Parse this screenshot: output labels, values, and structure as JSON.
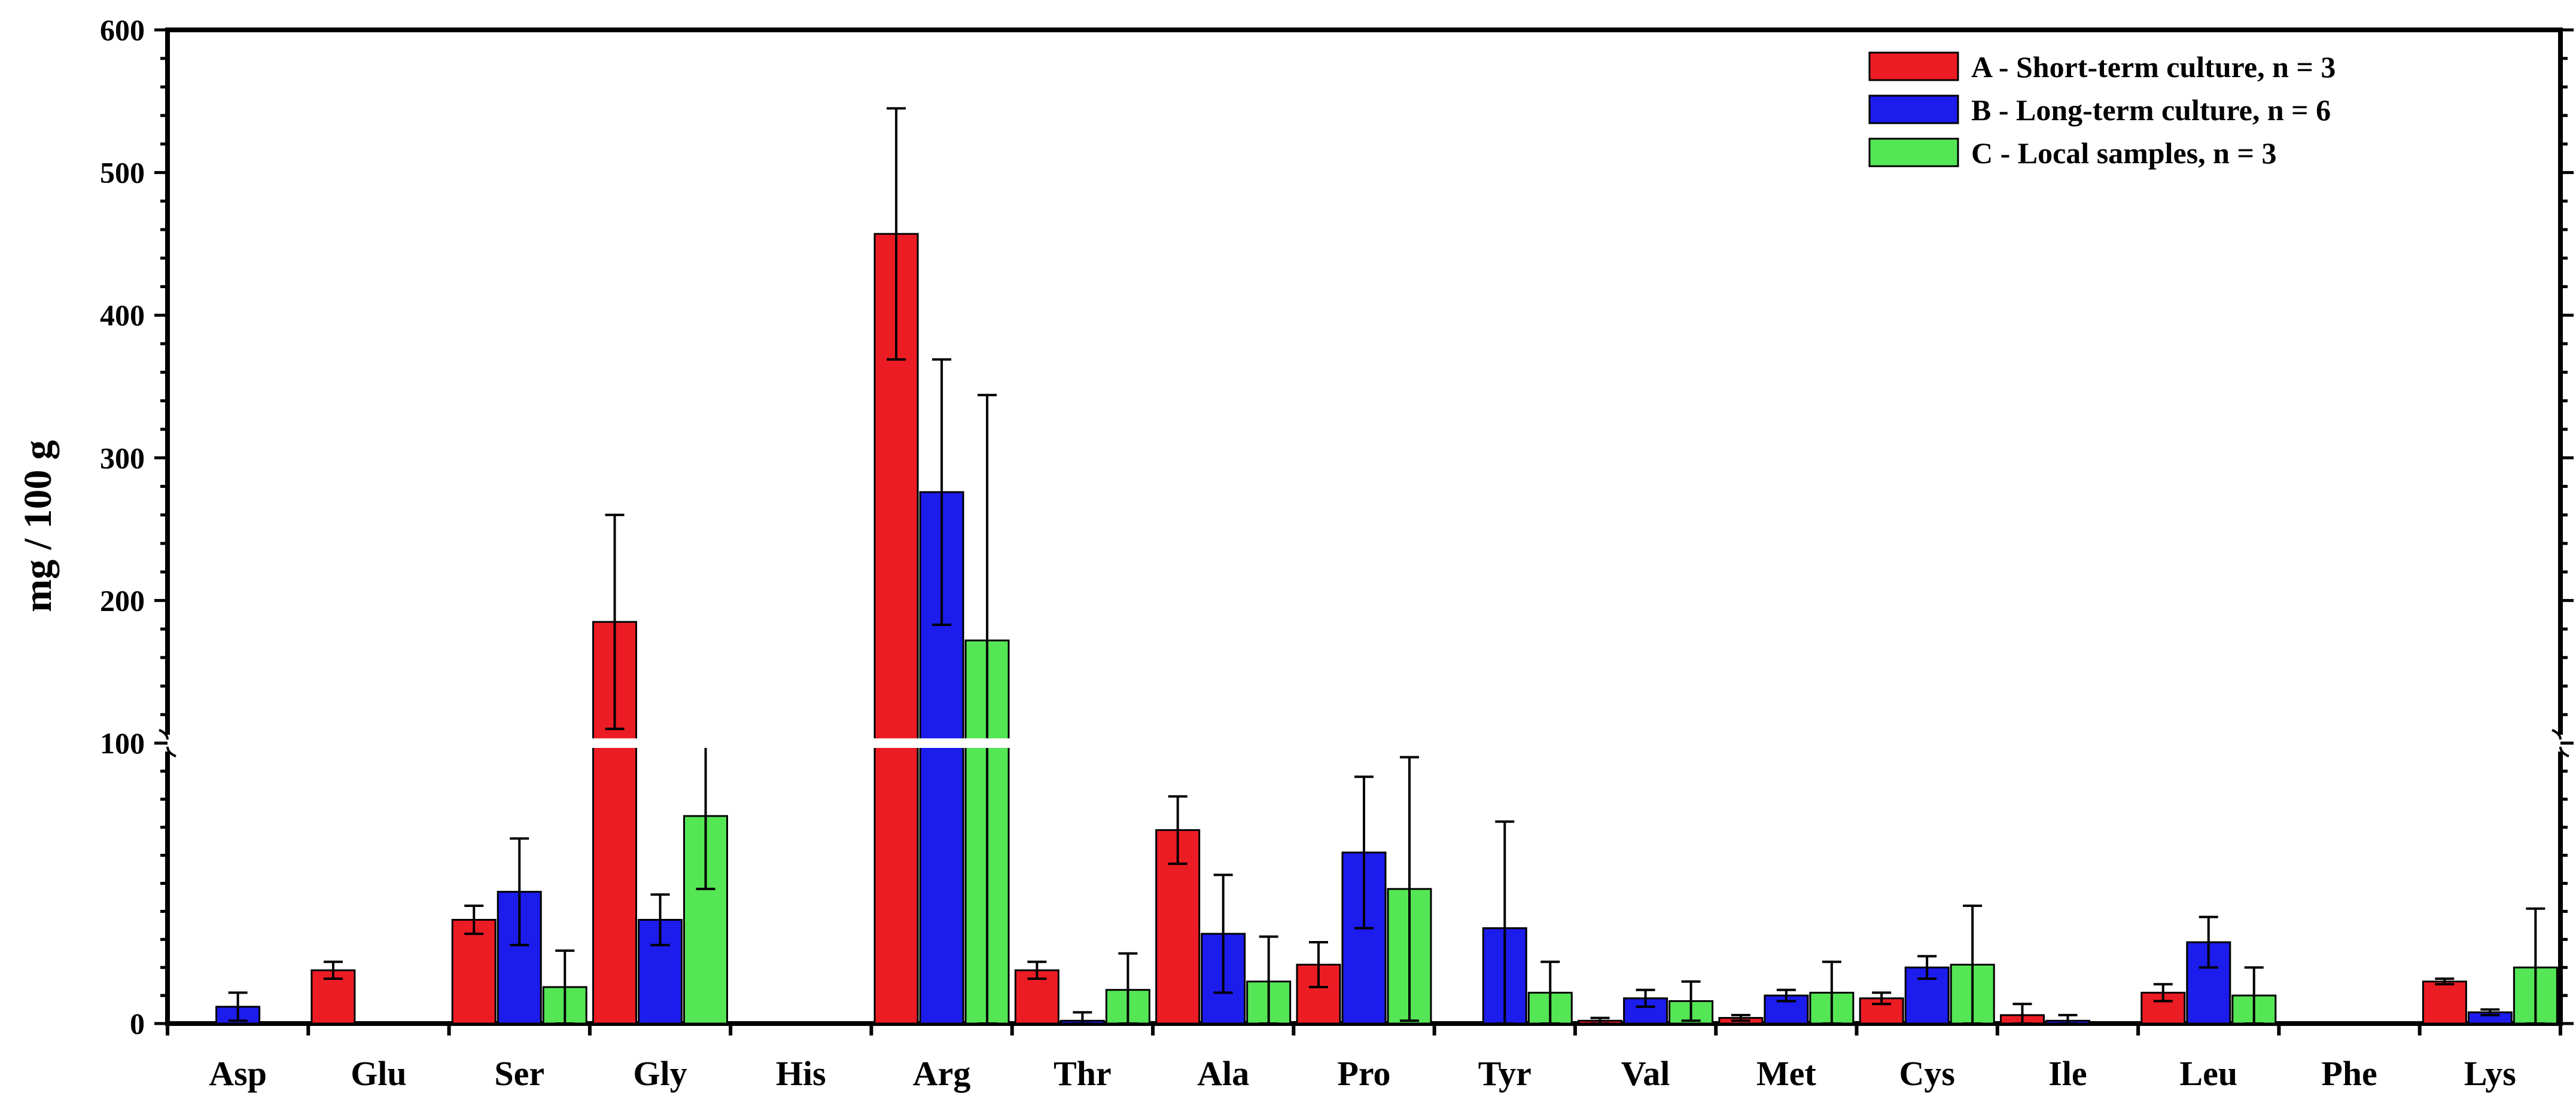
{
  "chart_data": {
    "type": "bar",
    "title": "",
    "xlabel": "",
    "ylabel": "mg / 100 g",
    "y_axis": {
      "broken": true,
      "lower_segment": {
        "range": [
          0,
          100
        ],
        "ticks": [
          0,
          100
        ],
        "minor_step": 10
      },
      "upper_segment": {
        "range": [
          100,
          600
        ],
        "ticks": [
          200,
          300,
          400,
          500,
          600
        ],
        "minor_step": 20
      },
      "tick_labels": [
        "0",
        "100",
        "200",
        "300",
        "400",
        "500",
        "600"
      ]
    },
    "grid": false,
    "legend_position": "top-right",
    "categories": [
      "Asp",
      "Glu",
      "Ser",
      "Gly",
      "His",
      "Arg",
      "Thr",
      "Ala",
      "Pro",
      "Tyr",
      "Val",
      "Met",
      "Cys",
      "Ile",
      "Leu",
      "Phe",
      "Lys"
    ],
    "series": [
      {
        "name": "A - Short-term culture, n = 3",
        "color": "#ec1c24",
        "values": [
          0,
          19,
          37,
          185,
          0,
          457,
          19,
          69,
          21,
          0,
          1,
          2,
          9,
          3,
          11,
          0,
          15
        ],
        "errors": [
          0,
          3,
          5,
          75,
          0,
          88,
          3,
          12,
          8,
          0,
          1,
          1,
          2,
          4,
          3,
          0,
          1
        ]
      },
      {
        "name": "B - Long-term culture, n = 6",
        "color": "#1c1cec",
        "values": [
          6,
          0,
          47,
          37,
          0,
          276,
          1,
          32,
          61,
          34,
          9,
          10,
          20,
          1,
          29,
          0,
          4
        ],
        "errors": [
          5,
          0,
          19,
          9,
          0,
          93,
          3,
          21,
          27,
          38,
          3,
          2,
          4,
          2,
          9,
          0,
          1
        ]
      },
      {
        "name": "C - Local samples, n = 3",
        "color": "#55e655",
        "values": [
          0,
          0,
          13,
          74,
          0,
          172,
          12,
          15,
          48,
          11,
          8,
          11,
          21,
          0,
          10,
          0,
          20
        ],
        "errors": [
          0,
          0,
          13,
          26,
          0,
          172,
          13,
          16,
          47,
          11,
          7,
          11,
          21,
          0,
          10,
          0,
          21
        ]
      }
    ]
  }
}
